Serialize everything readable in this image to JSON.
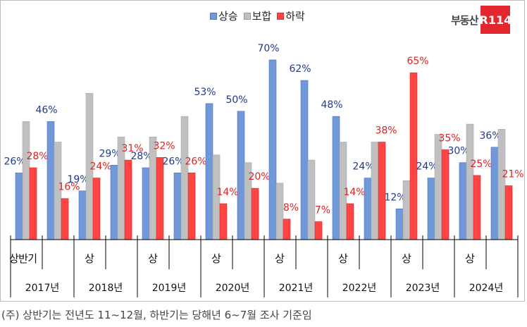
{
  "chart_data": {
    "type": "bar",
    "legend_position": "top",
    "categories": [
      "2017 상반기",
      "2017 하반기",
      "2018 상반기",
      "2018 하반기",
      "2019 상반기",
      "2019 하반기",
      "2020 상반기",
      "2020 하반기",
      "2021 상반기",
      "2021 하반기",
      "2022 상반기",
      "2022 하반기",
      "2023 상반기",
      "2023 하반기",
      "2024 상반기",
      "2024 하반기"
    ],
    "half_labels": [
      "상반기",
      "상",
      "상",
      "상",
      "상",
      "상",
      "상",
      "상"
    ],
    "year_labels": [
      "2017년",
      "2018년",
      "2019년",
      "2020년",
      "2021년",
      "2022년",
      "2023년",
      "2024년"
    ],
    "ylim": [
      0,
      75
    ],
    "grid": false,
    "series": [
      {
        "name": "상승",
        "color": "#7198d8",
        "label_color": "#1f3a8c",
        "labeled": true,
        "values": [
          26,
          46,
          19,
          29,
          28,
          26,
          53,
          50,
          70,
          62,
          48,
          24,
          12,
          24,
          30,
          36
        ]
      },
      {
        "name": "보합",
        "color": "#c0c0c0",
        "label_color": "#555555",
        "labeled": false,
        "values": [
          46,
          38,
          57,
          40,
          40,
          48,
          33,
          30,
          22,
          31,
          38,
          38,
          23,
          41,
          45,
          43
        ]
      },
      {
        "name": "하락",
        "color": "#ff4444",
        "label_color": "#e02020",
        "labeled": true,
        "values": [
          28,
          16,
          24,
          31,
          32,
          26,
          14,
          20,
          8,
          7,
          14,
          38,
          65,
          35,
          25,
          21
        ]
      }
    ]
  },
  "logo": {
    "text": "부동산",
    "box": "R114"
  },
  "footnote": "(주) 상반기는 전년도 11~12월, 하반기는 당해년 6~7월 조사 기준임"
}
